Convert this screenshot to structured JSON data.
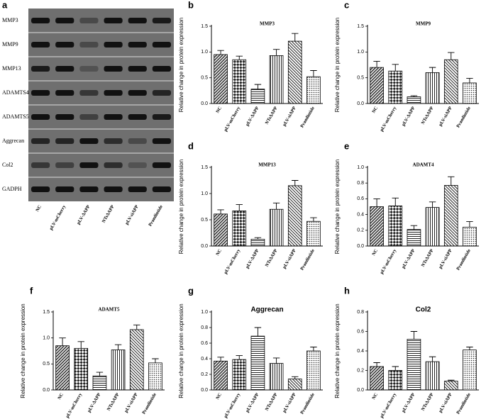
{
  "blot": {
    "label": "a",
    "rows": [
      "MMP3",
      "MMP9",
      "MMP13",
      "ADAMTS4",
      "ADAMTS5",
      "Aggrecan",
      "Col2",
      "GADPH"
    ],
    "lanes": [
      "NC",
      "pLV-mCherry",
      "pLV-ΔAPP",
      "NTsΔAPP",
      "pLV-siAPP",
      "Pramlintide"
    ]
  },
  "chart_data": [
    {
      "type": "bar",
      "label": "b",
      "title": "MMP3",
      "ylabel": "Relative change in protein expression",
      "categories": [
        "NC",
        "pLV-mCherry",
        "pLV-ΔAPP",
        "NTsΔAPP",
        "pLV-siAPP",
        "Pramlintide"
      ],
      "values": [
        0.95,
        0.85,
        0.28,
        0.93,
        1.21,
        0.52
      ],
      "errors": [
        0.08,
        0.07,
        0.09,
        0.12,
        0.15,
        0.12
      ],
      "ylim": [
        0,
        1.5
      ],
      "yticks": [
        {
          "value": 0,
          "label": "0.0"
        },
        0.5,
        {
          "value": 1,
          "label": "1.0"
        },
        1.5
      ]
    },
    {
      "type": "bar",
      "label": "c",
      "title": "MMP9",
      "ylabel": "Relative change in protein expression",
      "categories": [
        "NC",
        "pLV-mCherry",
        "pLV-ΔAPP",
        "NTsΔAPP",
        "pLV-siAPP",
        "Pramlintide"
      ],
      "values": [
        0.7,
        0.63,
        0.13,
        0.6,
        0.85,
        0.4
      ],
      "errors": [
        0.12,
        0.13,
        0.02,
        0.1,
        0.14,
        0.09
      ],
      "ylim": [
        0,
        1.5
      ],
      "yticks": [
        {
          "value": 0,
          "label": "0.0"
        },
        0.5,
        {
          "value": 1,
          "label": "1.0"
        },
        1.5
      ]
    },
    {
      "type": "bar",
      "label": "d",
      "title": "MMP13",
      "ylabel": "Relative change in protein expression",
      "categories": [
        "NC",
        "pLV-mCherry",
        "pLV-ΔAPP",
        "NTsΔAPP",
        "pLV-siAPP",
        "Pramlintide"
      ],
      "values": [
        0.61,
        0.67,
        0.13,
        0.7,
        1.15,
        0.47
      ],
      "errors": [
        0.08,
        0.12,
        0.03,
        0.12,
        0.1,
        0.07
      ],
      "ylim": [
        0,
        1.5
      ],
      "yticks": [
        {
          "value": 0,
          "label": "0.0"
        },
        0.5,
        {
          "value": 1,
          "label": "1.0"
        },
        1.5
      ]
    },
    {
      "type": "bar",
      "label": "e",
      "title": "ADAMT4",
      "ylabel": "Relative change in protein expression",
      "categories": [
        "NC",
        "pLV-mCherry",
        "pLV-ΔAPP",
        "NTsΔAPP",
        "pLV-siAPP",
        "Pramlintide"
      ],
      "values": [
        0.5,
        0.51,
        0.21,
        0.49,
        0.77,
        0.24
      ],
      "errors": [
        0.1,
        0.1,
        0.05,
        0.07,
        0.11,
        0.07
      ],
      "ylim": [
        0,
        1
      ],
      "yticks": [
        {
          "value": 0,
          "label": "0.0"
        },
        0.2,
        0.4,
        0.6,
        0.8,
        {
          "value": 1,
          "label": "1.0"
        }
      ]
    },
    {
      "type": "bar",
      "label": "f",
      "title": "ADAMT5",
      "ylabel": "Relative change in protein expression",
      "categories": [
        "NC",
        "pLV-mCherry",
        "pLV-ΔAPP",
        "NTsΔAPP",
        "pLV-siAPP",
        "Pramlintide"
      ],
      "values": [
        0.85,
        0.8,
        0.27,
        0.77,
        1.16,
        0.52
      ],
      "errors": [
        0.15,
        0.13,
        0.07,
        0.1,
        0.09,
        0.08
      ],
      "ylim": [
        0,
        1.5
      ],
      "yticks": [
        {
          "value": 0,
          "label": "0.0"
        },
        0.5,
        {
          "value": 1,
          "label": "1.0"
        },
        1.5
      ]
    },
    {
      "type": "bar",
      "label": "g",
      "title": "Aggrecan",
      "ylabel": "Relative change in protein expression",
      "categories": [
        "NC",
        "pLV-mCherry",
        "pLV-ΔAPP",
        "NTsΔAPP",
        "pLV-siAPP",
        "Pramlintide"
      ],
      "values": [
        0.37,
        0.39,
        0.69,
        0.34,
        0.14,
        0.5
      ],
      "errors": [
        0.05,
        0.05,
        0.11,
        0.07,
        0.03,
        0.05
      ],
      "ylim": [
        0,
        1
      ],
      "yticks": [
        {
          "value": 0,
          "label": "0.0"
        },
        0.2,
        0.4,
        0.6,
        0.8,
        {
          "value": 1,
          "label": "1.0"
        }
      ]
    },
    {
      "type": "bar",
      "label": "h",
      "title": "Col2",
      "ylabel": "Relative change in protein expression",
      "categories": [
        "NC",
        "pLV-mCherry",
        "pLV-ΔAPP",
        "NTsΔAPP",
        "pLV-siAPP",
        "Pramlintide"
      ],
      "values": [
        0.24,
        0.2,
        0.52,
        0.29,
        0.09,
        0.41
      ],
      "errors": [
        0.04,
        0.04,
        0.08,
        0.05,
        0.01,
        0.03
      ],
      "ylim": [
        0,
        0.8
      ],
      "yticks": [
        {
          "value": 0,
          "label": "0.0"
        },
        0.2,
        0.4,
        0.6,
        0.8
      ]
    }
  ]
}
